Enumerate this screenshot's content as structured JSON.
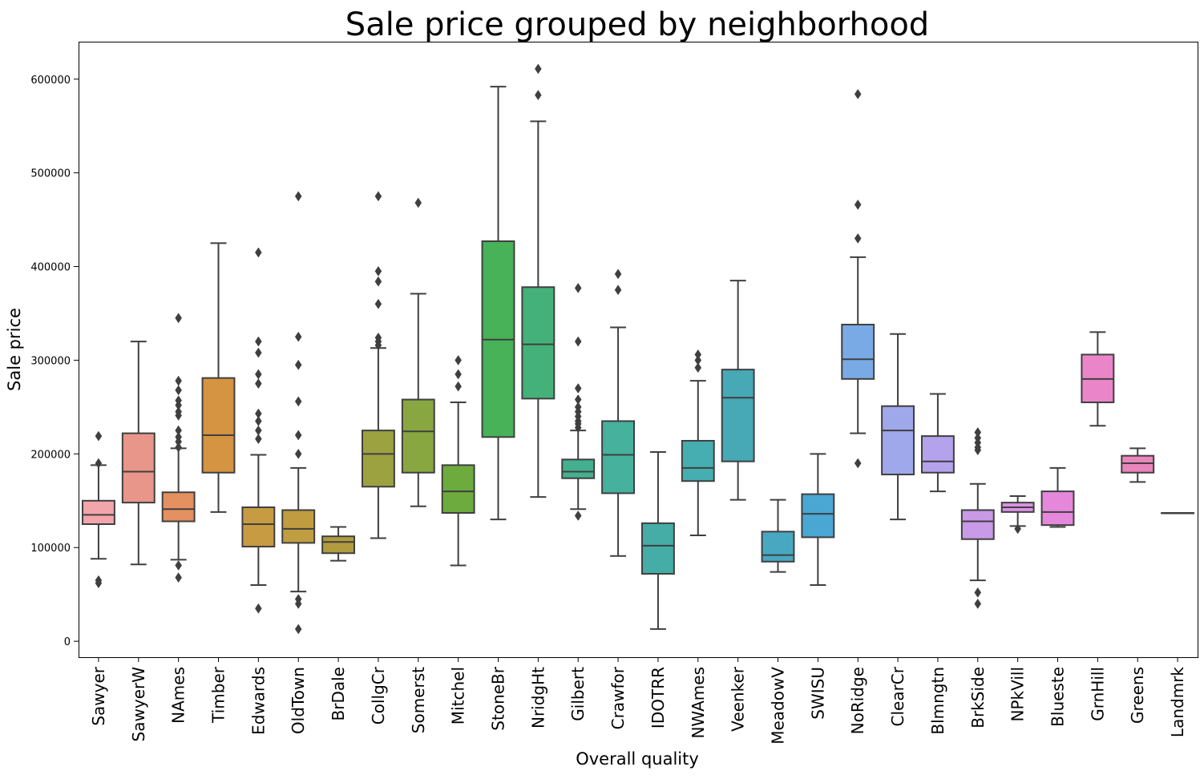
{
  "chart_data": {
    "type": "box",
    "title": "Sale price grouped by neighborhood",
    "xlabel": "Overall quality",
    "ylabel": "Sale price",
    "ylim": [
      -17000,
      640000
    ],
    "yticks": [
      0,
      100000,
      200000,
      300000,
      400000,
      500000,
      600000
    ],
    "ytick_labels": [
      "0",
      "100000",
      "200000",
      "300000",
      "400000",
      "500000",
      "600000"
    ],
    "grid": false,
    "legend": "none",
    "categories": [
      "Sawyer",
      "SawyerW",
      "NAmes",
      "Timber",
      "Edwards",
      "OldTown",
      "BrDale",
      "CollgCr",
      "Somerst",
      "Mitchel",
      "StoneBr",
      "NridgHt",
      "Gilbert",
      "Crawfor",
      "IDOTRR",
      "NWAmes",
      "Veenker",
      "MeadowV",
      "SWISU",
      "NoRidge",
      "ClearCr",
      "Blmngtn",
      "BrkSide",
      "NPkVill",
      "Blueste",
      "GrnHill",
      "Greens",
      "Landmrk"
    ],
    "boxes": [
      {
        "name": "Sawyer",
        "color": "#f2a5ab",
        "min": 88000,
        "q1": 125000,
        "median": 135000,
        "q3": 150000,
        "max": 188000,
        "outliers": [
          219000,
          190000,
          65000,
          62000
        ]
      },
      {
        "name": "SawyerW",
        "color": "#e8968a",
        "min": 82000,
        "q1": 148000,
        "median": 181000,
        "q3": 222000,
        "max": 320000,
        "outliers": []
      },
      {
        "name": "NAmes",
        "color": "#e49060",
        "min": 87000,
        "q1": 128000,
        "median": 141000,
        "q3": 159000,
        "max": 206000,
        "outliers": [
          345000,
          278000,
          268000,
          257000,
          252000,
          245000,
          241000,
          225000,
          218000,
          213000,
          207000,
          81000,
          68000
        ]
      },
      {
        "name": "Timber",
        "color": "#d49442",
        "min": 138000,
        "q1": 180000,
        "median": 220000,
        "q3": 281000,
        "max": 425000,
        "outliers": []
      },
      {
        "name": "Edwards",
        "color": "#c79b42",
        "min": 60000,
        "q1": 101000,
        "median": 125000,
        "q3": 143000,
        "max": 199000,
        "outliers": [
          415000,
          320000,
          308000,
          285000,
          275000,
          243000,
          235000,
          225000,
          216000,
          35000
        ]
      },
      {
        "name": "OldTown",
        "color": "#c09d41",
        "min": 53000,
        "q1": 105000,
        "median": 120000,
        "q3": 140000,
        "max": 185000,
        "outliers": [
          475000,
          325000,
          295000,
          256000,
          220000,
          200000,
          45000,
          40000,
          13000
        ]
      },
      {
        "name": "BrDale",
        "color": "#b09c3f",
        "min": 86000,
        "q1": 94000,
        "median": 106000,
        "q3": 112000,
        "max": 122000,
        "outliers": []
      },
      {
        "name": "CollgCr",
        "color": "#9ca240",
        "min": 110000,
        "q1": 165000,
        "median": 200000,
        "q3": 225000,
        "max": 313000,
        "outliers": [
          475000,
          395000,
          384000,
          360000,
          324000,
          320000,
          316000
        ]
      },
      {
        "name": "Somerst",
        "color": "#88a741",
        "min": 144000,
        "q1": 180000,
        "median": 224000,
        "q3": 258000,
        "max": 371000,
        "outliers": [
          468000
        ]
      },
      {
        "name": "Mitchel",
        "color": "#6dab3e",
        "min": 81000,
        "q1": 137000,
        "median": 160000,
        "q3": 188000,
        "max": 255000,
        "outliers": [
          300000,
          285000,
          272000
        ]
      },
      {
        "name": "StoneBr",
        "color": "#48b258",
        "min": 130000,
        "q1": 218000,
        "median": 322000,
        "q3": 427000,
        "max": 592000,
        "outliers": []
      },
      {
        "name": "NridgHt",
        "color": "#45b17a",
        "min": 154000,
        "q1": 259000,
        "median": 317000,
        "q3": 378000,
        "max": 555000,
        "outliers": [
          611000,
          583000
        ]
      },
      {
        "name": "Gilbert",
        "color": "#44b08f",
        "min": 141000,
        "q1": 174000,
        "median": 181000,
        "q3": 194000,
        "max": 225000,
        "outliers": [
          377000,
          320000,
          270000,
          258000,
          250000,
          245000,
          240000,
          235000,
          232000,
          228000,
          134000
        ]
      },
      {
        "name": "Crawfor",
        "color": "#46b19d",
        "min": 91000,
        "q1": 158000,
        "median": 199000,
        "q3": 235000,
        "max": 335000,
        "outliers": [
          392000,
          375000
        ]
      },
      {
        "name": "IDOTRR",
        "color": "#45aca6",
        "min": 13000,
        "q1": 72000,
        "median": 102000,
        "q3": 126000,
        "max": 202000,
        "outliers": []
      },
      {
        "name": "NWAmes",
        "color": "#46aeb0",
        "min": 113000,
        "q1": 171000,
        "median": 185000,
        "q3": 214000,
        "max": 278000,
        "outliers": [
          306000,
          300000,
          292000
        ]
      },
      {
        "name": "Veenker",
        "color": "#47a8b6",
        "min": 151000,
        "q1": 192000,
        "median": 260000,
        "q3": 290000,
        "max": 385000,
        "outliers": []
      },
      {
        "name": "MeadowV",
        "color": "#49a8c1",
        "min": 74000,
        "q1": 85000,
        "median": 92000,
        "q3": 117000,
        "max": 151000,
        "outliers": []
      },
      {
        "name": "SWISU",
        "color": "#4aa7d4",
        "min": 60000,
        "q1": 111000,
        "median": 136000,
        "q3": 157000,
        "max": 200000,
        "outliers": []
      },
      {
        "name": "NoRidge",
        "color": "#7aaae6",
        "min": 222000,
        "q1": 280000,
        "median": 301000,
        "q3": 338000,
        "max": 410000,
        "outliers": [
          584000,
          466000,
          430000,
          190000
        ]
      },
      {
        "name": "ClearCr",
        "color": "#9ea8eb",
        "min": 130000,
        "q1": 178000,
        "median": 225000,
        "q3": 251000,
        "max": 328000,
        "outliers": []
      },
      {
        "name": "Blmngtn",
        "color": "#b5a2ed",
        "min": 160000,
        "q1": 180000,
        "median": 192000,
        "q3": 219000,
        "max": 264000,
        "outliers": []
      },
      {
        "name": "BrkSide",
        "color": "#c89ae8",
        "min": 65000,
        "q1": 109000,
        "median": 128000,
        "q3": 140000,
        "max": 168000,
        "outliers": [
          223000,
          217000,
          212000,
          207000,
          204000,
          52000,
          40000
        ]
      },
      {
        "name": "NPkVill",
        "color": "#dd93e6",
        "min": 123000,
        "q1": 138000,
        "median": 143000,
        "q3": 148000,
        "max": 155000,
        "outliers": [
          120000
        ]
      },
      {
        "name": "Blueste",
        "color": "#e588dc",
        "min": 122000,
        "q1": 124000,
        "median": 138000,
        "q3": 160000,
        "max": 185000,
        "outliers": []
      },
      {
        "name": "GrnHill",
        "color": "#ea85c9",
        "min": 230000,
        "q1": 255000,
        "median": 280000,
        "q3": 306000,
        "max": 330000,
        "outliers": []
      },
      {
        "name": "Greens",
        "color": "#ea86bb",
        "min": 170000,
        "q1": 180000,
        "median": 190000,
        "q3": 198000,
        "max": 206000,
        "outliers": []
      },
      {
        "name": "Landmrk",
        "color": "#ee8bb0",
        "min": 137000,
        "q1": 137000,
        "median": 137000,
        "q3": 137000,
        "max": 137000,
        "outliers": []
      }
    ]
  }
}
